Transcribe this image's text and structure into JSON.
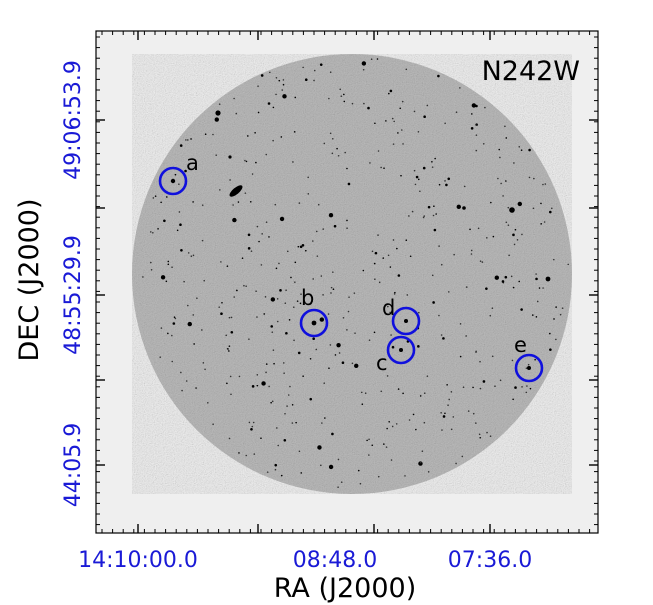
{
  "figure": {
    "panel_label": "N242W",
    "x_axis": {
      "label": "RA (J2000)",
      "tick_labels": [
        "14:10:00.0",
        "08:48.0",
        "07:36.0"
      ]
    },
    "y_axis": {
      "label": "DEC (J2000)",
      "tick_labels": [
        "49:06:53.9",
        "48:55:29.9",
        "44:05.9"
      ]
    },
    "markers": [
      {
        "id": "a"
      },
      {
        "id": "b"
      },
      {
        "id": "c"
      },
      {
        "id": "d"
      },
      {
        "id": "e"
      }
    ],
    "colors": {
      "marker": "#1010dd",
      "tick_labels": "#1a1ad6",
      "axis_labels": "#000000",
      "frame_background": "#efefef",
      "field": "#bdbdbd"
    }
  }
}
